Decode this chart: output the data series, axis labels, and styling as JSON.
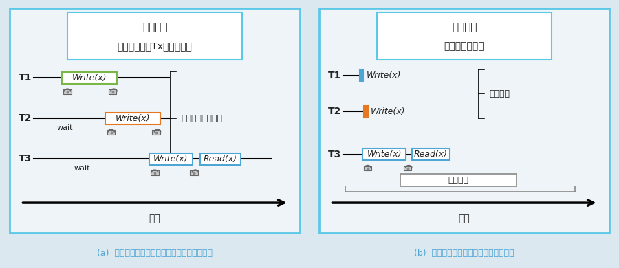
{
  "bg_color": "#dce8f0",
  "panel_bg": "#eef4f8",
  "panel_border_color": "#5bc8e8",
  "title_box_border": "#5bc8e8",
  "title_box_bg": "#ffffff",
  "left_title_line1": "既存手法",
  "left_title_line2": "ロックによるTx順序の決定",
  "right_title_line1": "提案手法",
  "right_title_line2": "書込処理を省略",
  "left_caption": "(a)  ロック期間が長いほどスループットが低下",
  "right_caption": "(b)  省略可能なほどスループットが向上",
  "dare_label": "誰にも読まれない",
  "shoryaku_label": "省略可能",
  "hyoka_label": "評価区間",
  "jikan_label": "時間",
  "wait_label": "wait",
  "write_label": "Write(x)",
  "read_label": "Read(x)",
  "green_color": "#7ab648",
  "orange_color": "#e87722",
  "blue_color": "#4da6d4",
  "light_blue_color": "#5bc8e8",
  "gray_color": "#aaaaaa",
  "text_color": "#222222",
  "caption_color": "#4da6d4",
  "font_size_title": 10,
  "font_size_label": 9,
  "font_size_tx": 9,
  "font_size_caption": 9
}
